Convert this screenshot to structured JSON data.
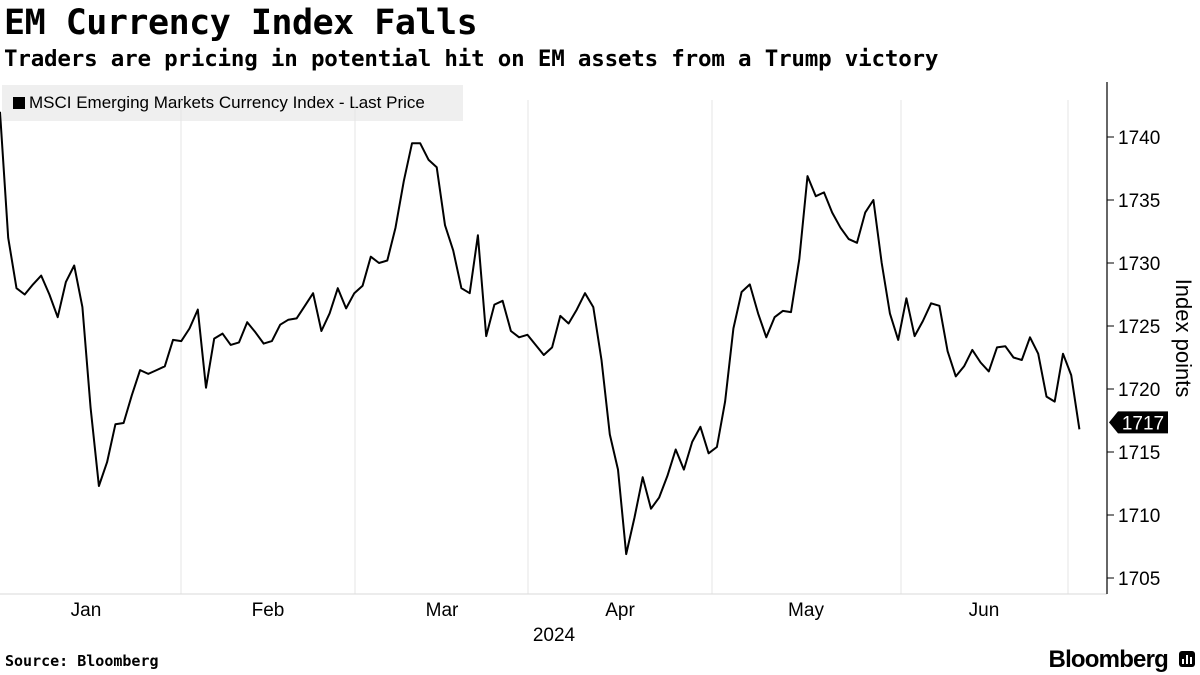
{
  "title": "EM Currency Index Falls",
  "subtitle": "Traders are pricing in potential hit on EM assets from a Trump victory",
  "source": "Source: Bloomberg",
  "brand": "Bloomberg",
  "brand_icon": "bar-chart-icon",
  "colors": {
    "line": "#000000",
    "legend_bg": "#efefef",
    "grid": "#e6e6e6",
    "axis": "#000000"
  },
  "chart_data": {
    "type": "line",
    "title": "EM Currency Index Falls",
    "subtitle": "Traders are pricing in potential hit on EM assets from a Trump victory",
    "xlabel": "2024",
    "ylabel": "Index points",
    "ylim": [
      1703,
      1745
    ],
    "yticks": [
      1705,
      1710,
      1715,
      1720,
      1725,
      1730,
      1735,
      1740
    ],
    "grid": "vertical month separators",
    "legend": {
      "position": "top-left",
      "entries": [
        "MSCI Emerging Markets Currency Index - Last Price"
      ]
    },
    "months": [
      "Jan",
      "Feb",
      "Mar",
      "Apr",
      "May",
      "Jun"
    ],
    "last_value_label": "1717",
    "series": [
      {
        "name": "MSCI Emerging Markets Currency Index - Last Price",
        "x_unit": "trading day index (0 = 29 Dec 2023)",
        "values": [
          1742.0,
          1732.0,
          1728.0,
          1727.5,
          1728.3,
          1729.0,
          1727.5,
          1725.7,
          1728.5,
          1729.8,
          1726.5,
          1718.5,
          1712.3,
          1714.2,
          1717.2,
          1717.3,
          1719.5,
          1721.5,
          1721.2,
          1721.5,
          1721.8,
          1723.9,
          1723.8,
          1724.8,
          1726.3,
          1720.1,
          1724.0,
          1724.4,
          1723.5,
          1723.7,
          1725.3,
          1724.5,
          1723.6,
          1723.8,
          1725.1,
          1725.5,
          1725.6,
          1726.6,
          1727.6,
          1724.6,
          1726.0,
          1728.0,
          1726.4,
          1727.6,
          1728.2,
          1730.5,
          1730.0,
          1730.2,
          1732.8,
          1736.5,
          1739.5,
          1739.5,
          1738.2,
          1737.6,
          1733.0,
          1731.0,
          1728.0,
          1727.6,
          1732.2,
          1724.2,
          1726.7,
          1727.0,
          1724.6,
          1724.1,
          1724.3,
          1723.5,
          1722.7,
          1723.3,
          1725.8,
          1725.2,
          1726.3,
          1727.6,
          1726.5,
          1722.3,
          1716.4,
          1713.6,
          1706.9,
          1709.8,
          1713.0,
          1710.5,
          1711.4,
          1713.1,
          1715.2,
          1713.6,
          1715.8,
          1717.0,
          1714.9,
          1715.4,
          1719.0,
          1724.8,
          1727.7,
          1728.3,
          1726.0,
          1724.1,
          1725.7,
          1726.2,
          1726.1,
          1730.3,
          1736.9,
          1735.3,
          1735.6,
          1734.0,
          1732.8,
          1731.9,
          1731.6,
          1734.0,
          1735.0,
          1730.0,
          1726.0,
          1723.9,
          1727.2,
          1724.2,
          1725.4,
          1726.8,
          1726.6,
          1723.0,
          1721.0,
          1721.8,
          1723.1,
          1722.1,
          1721.4,
          1723.3,
          1723.4,
          1722.5,
          1722.3,
          1724.1,
          1722.8,
          1719.4,
          1719.0,
          1722.8,
          1721.1,
          1716.8
        ]
      }
    ]
  }
}
